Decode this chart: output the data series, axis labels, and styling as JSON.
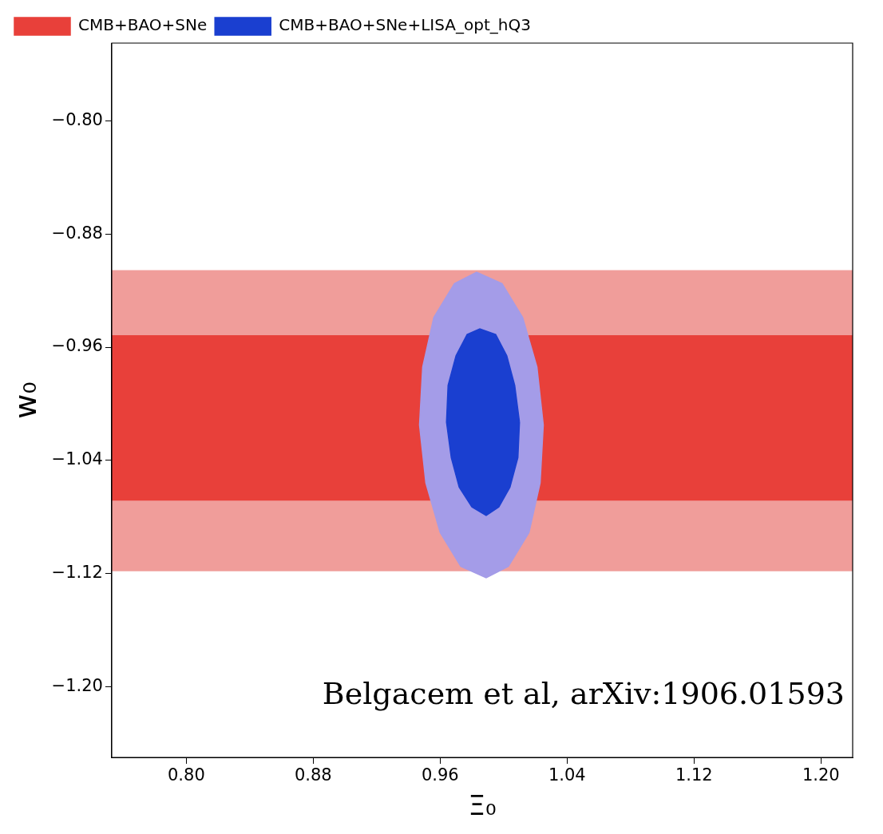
{
  "chart_data": {
    "type": "area",
    "xlabel": "Ξ₀",
    "ylabel": "w₀",
    "xlim": [
      0.753,
      1.22
    ],
    "ylim": [
      -1.25,
      -0.745
    ],
    "xticks": [
      {
        "value": 0.8,
        "label": "0.80"
      },
      {
        "value": 0.88,
        "label": "0.88"
      },
      {
        "value": 0.96,
        "label": "0.96"
      },
      {
        "value": 1.04,
        "label": "1.04"
      },
      {
        "value": 1.12,
        "label": "1.12"
      },
      {
        "value": 1.2,
        "label": "1.20"
      }
    ],
    "yticks": [
      {
        "value": -0.8,
        "label": "−0.80"
      },
      {
        "value": -0.88,
        "label": "−0.88"
      },
      {
        "value": -0.96,
        "label": "−0.96"
      },
      {
        "value": -1.04,
        "label": "−1.04"
      },
      {
        "value": -1.12,
        "label": "−1.12"
      },
      {
        "value": -1.2,
        "label": "−1.20"
      }
    ],
    "grid": false,
    "legend": "top left",
    "annotations": [
      "Belgacem et al, arXiv:1906.01593"
    ],
    "series": [
      {
        "color": "#f09d9a",
        "x": [
          0.753,
          1.22,
          1.22,
          0.753,
          0.753
        ],
        "values": [
          -0.906,
          -0.906,
          -1.118,
          -1.118,
          -0.906
        ]
      },
      {
        "name": "CMB+BAO+SNe",
        "color": "#e8403a",
        "x": [
          0.753,
          1.22,
          1.22,
          0.753,
          0.753
        ],
        "values": [
          -0.952,
          -0.952,
          -1.068,
          -1.068,
          -0.952
        ]
      },
      {
        "color": "#a49ce8",
        "x": [
          1.025,
          1.021,
          1.012,
          0.999,
          0.983,
          0.969,
          0.956,
          0.949,
          0.947,
          0.951,
          0.96,
          0.973,
          0.989,
          1.003,
          1.016,
          1.023,
          1.025
        ],
        "values": [
          -1.015,
          -0.974,
          -0.939,
          -0.915,
          -0.907,
          -0.915,
          -0.939,
          -0.974,
          -1.015,
          -1.056,
          -1.091,
          -1.115,
          -1.123,
          -1.115,
          -1.091,
          -1.056,
          -1.015
        ]
      },
      {
        "name": "CMB+BAO+SNe+LISA_opt_hQ3",
        "color": "#1a3fd0",
        "x": [
          1.01,
          1.007,
          1.002,
          0.995,
          0.985,
          0.977,
          0.97,
          0.965,
          0.964,
          0.967,
          0.972,
          0.98,
          0.989,
          0.997,
          1.004,
          1.009,
          1.01
        ],
        "values": [
          -1.013,
          -0.987,
          -0.966,
          -0.951,
          -0.947,
          -0.951,
          -0.966,
          -0.987,
          -1.013,
          -1.038,
          -1.059,
          -1.073,
          -1.079,
          -1.073,
          -1.059,
          -1.038,
          -1.013
        ]
      }
    ]
  }
}
